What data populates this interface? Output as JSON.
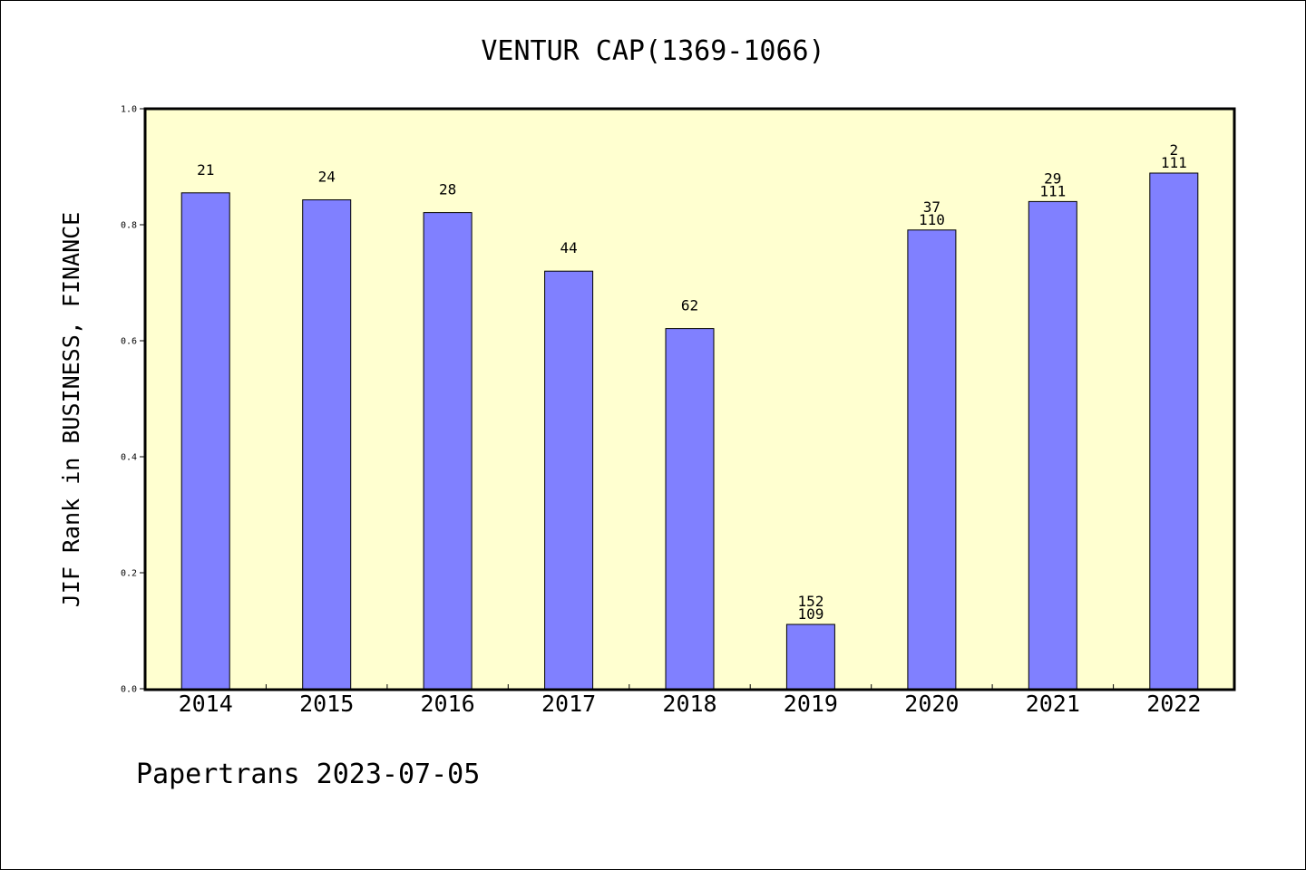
{
  "chart_data": {
    "type": "bar",
    "title": "VENTUR CAP(1369-1066)",
    "ylabel": "JIF Rank in BUSINESS, FINANCE",
    "xlabel": "",
    "ylim": [
      0,
      1.0
    ],
    "yticks": [
      "0.0",
      "0.2",
      "0.4",
      "0.6",
      "0.8",
      "1.0"
    ],
    "grid": false,
    "categories": [
      "2014",
      "2015",
      "2016",
      "2017",
      "2018",
      "2019",
      "2020",
      "2021",
      "2022"
    ],
    "values": [
      0.855,
      0.843,
      0.821,
      0.72,
      0.621,
      0.111,
      0.791,
      0.84,
      0.889
    ],
    "rank_labels": [
      "21",
      "24",
      "28",
      "44",
      "62",
      "152",
      "37",
      "29",
      "2"
    ],
    "total_labels": [
      "",
      "",
      "",
      "",
      "",
      "109",
      "110",
      "111",
      "111"
    ]
  },
  "colors": {
    "plot_background": "#FFFFD0",
    "bar_fill": "#8080FF",
    "bar_stroke": "#000000"
  },
  "footer": "Papertrans 2023-07-05"
}
